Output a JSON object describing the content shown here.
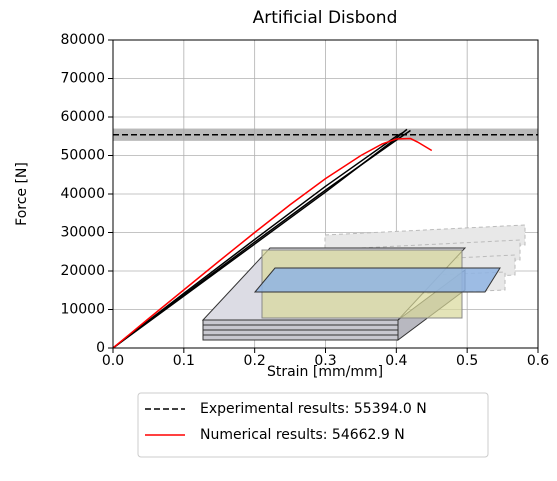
{
  "chart_data": {
    "type": "line",
    "title": "Artificial Disbond",
    "x_label": "Strain [mm/mm]",
    "y_label": "Force [N]",
    "xlim": [
      0,
      0.6
    ],
    "ylim": [
      0,
      80000
    ],
    "xticks": [
      {
        "value": 0,
        "label": "0.0"
      },
      0.1,
      0.2,
      0.3,
      0.4,
      0.5,
      0.6
    ],
    "yticks": [
      0,
      10000,
      20000,
      30000,
      40000,
      50000,
      60000,
      70000,
      80000
    ],
    "grid": true,
    "band": {
      "range": [
        53800,
        57000
      ],
      "color": "#a9a9a9"
    },
    "series": [
      {
        "name": "Experimental results: 55394.0 N",
        "color": "#000000",
        "dashed": true,
        "hline": 55394
      },
      {
        "name": "Numerical results: 54662.9 N",
        "color": "#ff0000",
        "x": [
          0,
          0.05,
          0.1,
          0.15,
          0.2,
          0.25,
          0.3,
          0.35,
          0.38,
          0.4,
          0.42,
          0.43,
          0.45
        ],
        "values": [
          0,
          7600,
          15100,
          22600,
          30000,
          37200,
          44000,
          50000,
          53000,
          54300,
          54400,
          53500,
          51300
        ]
      }
    ],
    "experimental_curves": [
      {
        "color": "#000000",
        "x": [
          0,
          0.1,
          0.2,
          0.3,
          0.4,
          0.42
        ],
        "values": [
          0,
          13800,
          27500,
          41000,
          54000,
          56500
        ]
      },
      {
        "color": "#000000",
        "x": [
          0,
          0.1,
          0.2,
          0.3,
          0.4,
          0.41
        ],
        "values": [
          0,
          14200,
          28200,
          42000,
          55000,
          56000
        ]
      },
      {
        "color": "#000000",
        "x": [
          0,
          0.1,
          0.2,
          0.3,
          0.4,
          0.415
        ],
        "values": [
          0,
          13500,
          27000,
          40500,
          54500,
          56800
        ]
      }
    ]
  }
}
